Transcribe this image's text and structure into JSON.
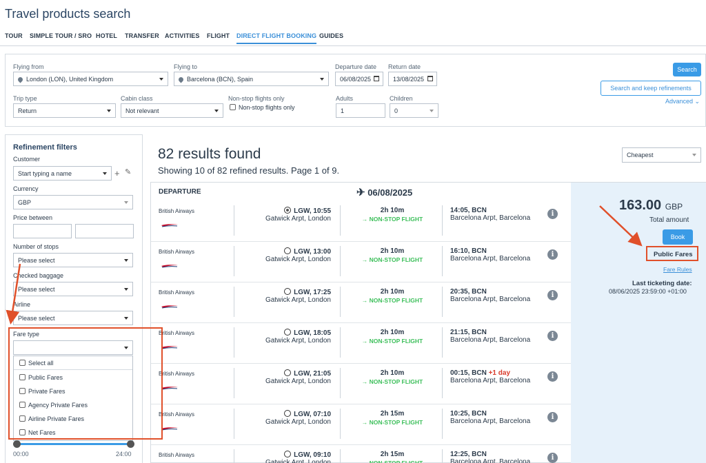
{
  "title": "Travel products search",
  "tabs": [
    "TOUR",
    "SIMPLE TOUR / SRO",
    "HOTEL",
    "TRANSFER",
    "ACTIVITIES",
    "FLIGHT",
    "DIRECT FLIGHT BOOKING",
    "GUIDES"
  ],
  "search": {
    "flying_from_label": "Flying from",
    "flying_from_value": "London (LON), United Kingdom",
    "flying_to_label": "Flying to",
    "flying_to_value": "Barcelona (BCN), Spain",
    "departure_label": "Departure date",
    "departure_value": "06/08/2025",
    "return_label": "Return date",
    "return_value": "13/08/2025",
    "trip_type_label": "Trip type",
    "trip_type_value": "Return",
    "cabin_label": "Cabin class",
    "cabin_value": "Not relevant",
    "nonstop_label": "Non-stop flights only",
    "nonstop_checkbox_label": "Non-stop flights only",
    "adults_label": "Adults",
    "adults_value": "1",
    "children_label": "Children",
    "children_value": "0",
    "search_button": "Search",
    "search_keep_button": "Search and keep refinements",
    "advanced_link": "Advanced"
  },
  "filters": {
    "heading": "Refinement filters",
    "customer_label": "Customer",
    "customer_placeholder": "Start typing a name",
    "currency_label": "Currency",
    "currency_value": "GBP",
    "price_label": "Price between",
    "stops_label": "Number of stops",
    "stops_value": "Please select",
    "baggage_label": "Checked baggage",
    "baggage_value": "Please select",
    "airline_label": "Airline",
    "airline_value": "Please select",
    "fare_type_label": "Fare type",
    "fare_options": [
      "Select all",
      "Public Fares",
      "Private Fares",
      "Agency Private Fares",
      "Airline Private Fares",
      "Net Fares"
    ],
    "time_min": "00:00",
    "time_max": "24:00"
  },
  "results": {
    "count_text": "82 results found",
    "summary_text": "Showing 10 of 82 refined results. Page 1 of 9.",
    "sort_value": "Cheapest",
    "departure_heading": "DEPARTURE",
    "departure_date": "06/08/2025",
    "flights": [
      {
        "airline": "British Airways",
        "dep": "LGW, 10:55",
        "dep_airport": "Gatwick Arpt, London",
        "duration": "2h 10m",
        "type": "NON-STOP FLIGHT",
        "arr": "14:05, BCN",
        "arr_airport": "Barcelona Arpt, Barcelona",
        "plus_day": "",
        "selected": true
      },
      {
        "airline": "British Airways",
        "dep": "LGW, 13:00",
        "dep_airport": "Gatwick Arpt, London",
        "duration": "2h 10m",
        "type": "NON-STOP FLIGHT",
        "arr": "16:10, BCN",
        "arr_airport": "Barcelona Arpt, Barcelona",
        "plus_day": "",
        "selected": false
      },
      {
        "airline": "British Airways",
        "dep": "LGW, 17:25",
        "dep_airport": "Gatwick Arpt, London",
        "duration": "2h 10m",
        "type": "NON-STOP FLIGHT",
        "arr": "20:35, BCN",
        "arr_airport": "Barcelona Arpt, Barcelona",
        "plus_day": "",
        "selected": false
      },
      {
        "airline": "British Airways",
        "dep": "LGW, 18:05",
        "dep_airport": "Gatwick Arpt, London",
        "duration": "2h 10m",
        "type": "NON-STOP FLIGHT",
        "arr": "21:15, BCN",
        "arr_airport": "Barcelona Arpt, Barcelona",
        "plus_day": "",
        "selected": false
      },
      {
        "airline": "British Airways",
        "dep": "LGW, 21:05",
        "dep_airport": "Gatwick Arpt, London",
        "duration": "2h 10m",
        "type": "NON-STOP FLIGHT",
        "arr": "00:15, BCN",
        "arr_airport": "Barcelona Arpt, Barcelona",
        "plus_day": "+1 day",
        "selected": false
      },
      {
        "airline": "British Airways",
        "dep": "LGW, 07:10",
        "dep_airport": "Gatwick Arpt, London",
        "duration": "2h 15m",
        "type": "NON-STOP FLIGHT",
        "arr": "10:25, BCN",
        "arr_airport": "Barcelona Arpt, Barcelona",
        "plus_day": "",
        "selected": false
      },
      {
        "airline": "British Airways",
        "dep": "LGW, 09:10",
        "dep_airport": "Gatwick Arpt, London",
        "duration": "2h 15m",
        "type": "NON-STOP FLIGHT",
        "arr": "12:25, BCN",
        "arr_airport": "Barcelona Arpt, Barcelona",
        "plus_day": "",
        "selected": false
      }
    ],
    "price": "163.00",
    "currency": "GBP",
    "total_label": "Total amount",
    "book_button": "Book",
    "fare_type": "Public Fares",
    "fare_rules_link": "Fare Rules",
    "last_ticketing_label": "Last ticketing date:",
    "last_ticketing_value": "08/06/2025 23:59:00 +01:00"
  },
  "colors": {
    "accent": "#3a9be6",
    "nonstop": "#3cbf5a",
    "annotation": "#e0502a",
    "price_bg": "#e6f1fa"
  }
}
